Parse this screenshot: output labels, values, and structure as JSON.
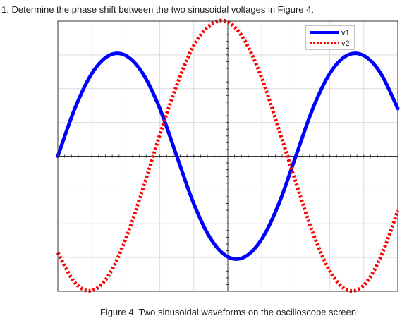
{
  "question": "1. Determine the phase shift between the two sinusoidal voltages in Figure 4.",
  "caption": "Figure 4. Two sinusoidal waveforms on the oscilloscope screen",
  "chart_data": {
    "type": "line",
    "title": "",
    "xlabel": "",
    "ylabel": "",
    "xlim": [
      0,
      10
    ],
    "ylim": [
      -4,
      4
    ],
    "grid": true,
    "legend": "top-right",
    "series": [
      {
        "name": "v1",
        "color": "#0000ff",
        "style": "solid",
        "x": [
          0,
          0.5,
          1,
          1.5,
          2,
          2.5,
          3,
          3.5,
          4,
          4.5,
          5,
          5.5,
          6,
          6.5,
          7,
          7.5,
          8,
          8.5,
          9,
          9.5,
          10
        ],
        "y": [
          0.0,
          1.41,
          2.45,
          2.98,
          2.98,
          2.45,
          1.41,
          0.0,
          -1.41,
          -2.45,
          -2.98,
          -2.98,
          -2.45,
          -1.41,
          0.0,
          1.41,
          2.45,
          2.98,
          2.98,
          2.45,
          1.41
        ]
      },
      {
        "name": "v2",
        "color": "#ff0000",
        "style": "dotted",
        "x": [
          0,
          0.5,
          1,
          1.5,
          2,
          2.5,
          3,
          3.5,
          4,
          4.5,
          5,
          5.5,
          6,
          6.5,
          7,
          7.5,
          8,
          8.5,
          9,
          9.5,
          10
        ],
        "y": [
          -2.86,
          -3.74,
          -3.98,
          -3.52,
          -2.44,
          -0.97,
          0.64,
          2.11,
          3.28,
          3.9,
          3.98,
          3.42,
          2.31,
          0.8,
          -0.77,
          -2.26,
          -3.4,
          -3.96,
          -3.82,
          -2.98,
          -1.61
        ]
      }
    ]
  }
}
